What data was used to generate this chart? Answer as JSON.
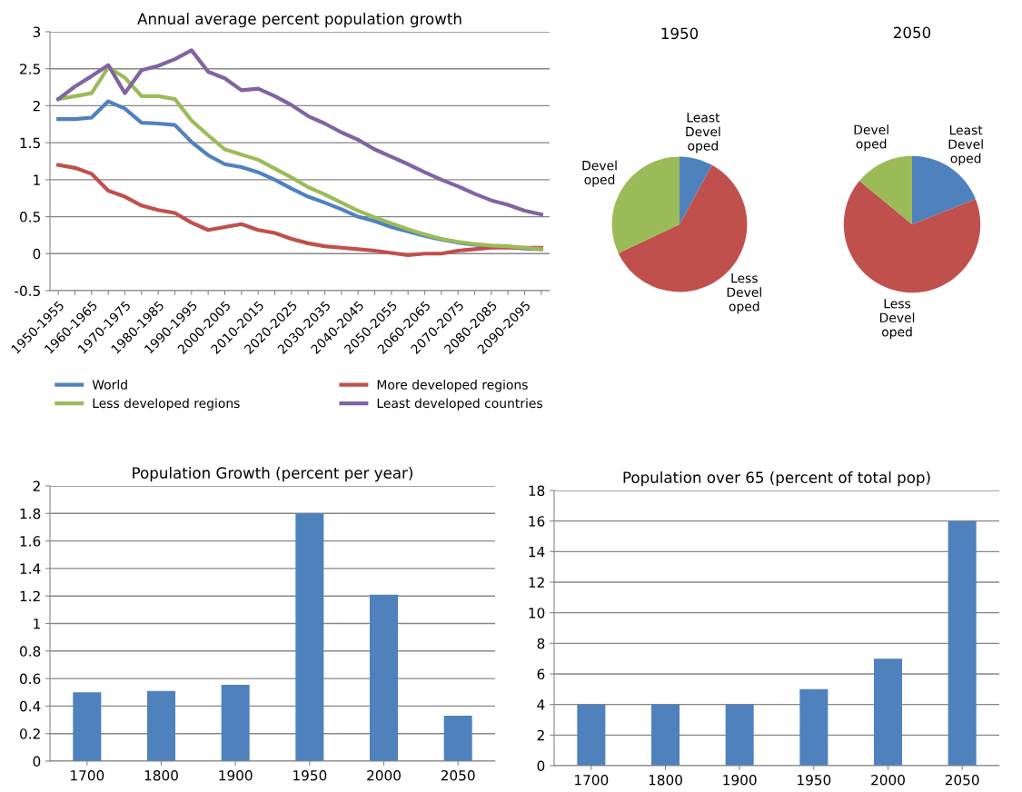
{
  "chart_data": [
    {
      "type": "line",
      "title": "Annual average percent population growth",
      "categories": [
        "1950-1955",
        null,
        "1960-1965",
        null,
        "1970-1975",
        null,
        "1980-1985",
        null,
        "1990-1995",
        null,
        "2000-2005",
        null,
        "2010-2015",
        null,
        "2020-2025",
        null,
        "2030-2035",
        null,
        "2040-2045",
        null,
        "2050-2055",
        null,
        "2060-2065",
        null,
        "2070-2075",
        null,
        "2080-2085",
        null,
        "2090-2095",
        null
      ],
      "series": [
        {
          "name": "World",
          "color": "#4f81bd",
          "values": [
            1.82,
            1.82,
            1.84,
            2.06,
            1.96,
            1.77,
            1.76,
            1.74,
            1.51,
            1.33,
            1.21,
            1.17,
            1.1,
            1.0,
            0.88,
            0.77,
            0.69,
            0.6,
            0.5,
            0.44,
            0.36,
            0.3,
            0.24,
            0.19,
            0.15,
            0.12,
            0.1,
            0.09,
            0.07,
            0.06
          ]
        },
        {
          "name": "More developed regions",
          "color": "#c0504d",
          "values": [
            1.2,
            1.16,
            1.08,
            0.85,
            0.77,
            0.65,
            0.59,
            0.55,
            0.42,
            0.32,
            0.36,
            0.4,
            0.32,
            0.28,
            0.2,
            0.14,
            0.1,
            0.08,
            0.06,
            0.04,
            0.01,
            -0.02,
            0.0,
            0.0,
            0.04,
            0.06,
            0.08,
            0.08,
            0.08,
            0.08
          ]
        },
        {
          "name": "Less developed regions",
          "color": "#9bbb59",
          "values": [
            2.09,
            2.13,
            2.17,
            2.52,
            2.38,
            2.13,
            2.13,
            2.09,
            1.8,
            1.6,
            1.41,
            1.34,
            1.27,
            1.15,
            1.03,
            0.9,
            0.8,
            0.69,
            0.58,
            0.49,
            0.41,
            0.33,
            0.26,
            0.2,
            0.16,
            0.13,
            0.11,
            0.1,
            0.08,
            0.06
          ]
        },
        {
          "name": "Least developed countries",
          "color": "#8064a2",
          "values": [
            2.09,
            2.26,
            2.4,
            2.55,
            2.17,
            2.48,
            2.54,
            2.63,
            2.75,
            2.46,
            2.37,
            2.21,
            2.23,
            2.13,
            2.01,
            1.86,
            1.76,
            1.64,
            1.54,
            1.41,
            1.31,
            1.21,
            1.1,
            1.0,
            0.91,
            0.81,
            0.72,
            0.66,
            0.58,
            0.53
          ]
        }
      ],
      "ylim": [
        -0.5,
        3
      ],
      "yticks": [
        -0.5,
        0,
        0.5,
        1,
        1.5,
        2,
        2.5,
        3
      ],
      "grid": "y",
      "legend": "bottom",
      "marker": "none",
      "line_style": "solid"
    },
    {
      "type": "pie",
      "title": "1950",
      "categories": [
        "Least\nDevel\noped",
        "Less\nDevel\noped",
        "Devel\noped"
      ],
      "values": [
        8,
        60,
        32
      ],
      "colors": [
        "#4f81bd",
        "#c0504d",
        "#9bbb59"
      ]
    },
    {
      "type": "pie",
      "title": "2050",
      "categories": [
        "Least\nDevel\noped",
        "Less\nDevel\noped",
        "Devel\noped"
      ],
      "values": [
        19,
        67,
        14
      ],
      "colors": [
        "#4f81bd",
        "#c0504d",
        "#9bbb59"
      ]
    },
    {
      "type": "bar",
      "title": "Population Growth (percent per year)",
      "categories": [
        "1700",
        "1800",
        "1900",
        "1950",
        "2000",
        "2050"
      ],
      "values": [
        0.5,
        0.51,
        0.555,
        1.8,
        1.21,
        0.33
      ],
      "color": "#4f81bd",
      "ylim": [
        0,
        2
      ],
      "yticks": [
        0,
        0.2,
        0.4,
        0.6,
        0.8,
        1,
        1.2,
        1.4,
        1.6,
        1.8,
        2
      ],
      "grid": "y"
    },
    {
      "type": "bar",
      "title": "Population over 65 (percent of total pop)",
      "categories": [
        "1700",
        "1800",
        "1900",
        "1950",
        "2000",
        "2050"
      ],
      "values": [
        4,
        4,
        4,
        5,
        7,
        16
      ],
      "color": "#4f81bd",
      "ylim": [
        0,
        18
      ],
      "yticks": [
        0,
        2,
        4,
        6,
        8,
        10,
        12,
        14,
        16,
        18
      ],
      "grid": "y"
    }
  ]
}
